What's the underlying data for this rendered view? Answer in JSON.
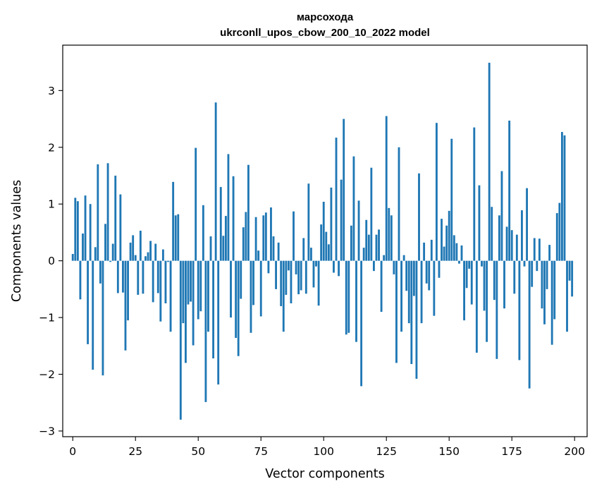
{
  "chart_data": {
    "type": "bar",
    "title": "марсохода",
    "subtitle": "ukrconll_upos_cbow_200_10_2022 model",
    "xlabel": "Vector components",
    "ylabel": "Components values",
    "xlim": [
      -4,
      205
    ],
    "ylim": [
      -3.1,
      3.8
    ],
    "xticks": [
      0,
      25,
      50,
      75,
      100,
      125,
      150,
      175,
      200
    ],
    "xtick_labels": [
      "0",
      "25",
      "50",
      "75",
      "100",
      "125",
      "150",
      "175",
      "200"
    ],
    "yticks": [
      -3,
      -2,
      -1,
      0,
      1,
      2,
      3
    ],
    "ytick_labels": [
      "−3",
      "−2",
      "−1",
      "0",
      "1",
      "2",
      "3"
    ],
    "grid": false,
    "legend": "none",
    "bar_color": "#1f77b4",
    "series": [
      {
        "x": [
          0,
          1,
          2,
          3,
          4,
          5,
          6,
          7,
          8,
          9,
          10,
          11,
          12,
          13,
          14,
          15,
          16,
          17,
          18,
          19,
          20,
          21,
          22,
          23,
          24,
          25,
          26,
          27,
          28,
          29,
          30,
          31,
          32,
          33,
          34,
          35,
          36,
          37,
          38,
          39,
          40,
          41,
          42,
          43,
          44,
          45,
          46,
          47,
          48,
          49,
          50,
          51,
          52,
          53,
          54,
          55,
          56,
          57,
          58,
          59,
          60,
          61,
          62,
          63,
          64,
          65,
          66,
          67,
          68,
          69,
          70,
          71,
          72,
          73,
          74,
          75,
          76,
          77,
          78,
          79,
          80,
          81,
          82,
          83,
          84,
          85,
          86,
          87,
          88,
          89,
          90,
          91,
          92,
          93,
          94,
          95,
          96,
          97,
          98,
          99,
          100,
          101,
          102,
          103,
          104,
          105,
          106,
          107,
          108,
          109,
          110,
          111,
          112,
          113,
          114,
          115,
          116,
          117,
          118,
          119,
          120,
          121,
          122,
          123,
          124,
          125,
          126,
          127,
          128,
          129,
          130,
          131,
          132,
          133,
          134,
          135,
          136,
          137,
          138,
          139,
          140,
          141,
          142,
          143,
          144,
          145,
          146,
          147,
          148,
          149,
          150,
          151,
          152,
          153,
          154,
          155,
          156,
          157,
          158,
          159,
          160,
          161,
          162,
          163,
          164,
          165,
          166,
          167,
          168,
          169,
          170,
          171,
          172,
          173,
          174,
          175,
          176,
          177,
          178,
          179,
          180,
          181,
          182,
          183,
          184,
          185,
          186,
          187,
          188,
          189,
          190,
          191,
          192,
          193,
          194,
          195,
          196,
          197,
          198,
          199
        ],
        "values": [
          0.12,
          1.11,
          1.05,
          -0.68,
          0.48,
          1.15,
          -1.47,
          1.0,
          -1.92,
          0.24,
          1.7,
          -0.4,
          -2.02,
          0.65,
          1.72,
          -0.02,
          0.3,
          1.5,
          -0.57,
          1.17,
          -0.56,
          -1.58,
          -1.05,
          0.32,
          0.45,
          0.1,
          -0.6,
          0.53,
          -0.58,
          0.08,
          0.15,
          0.35,
          -0.73,
          0.3,
          -0.57,
          -1.07,
          0.2,
          -0.75,
          -0.02,
          -1.25,
          1.39,
          0.8,
          0.82,
          -2.8,
          -1.1,
          -1.8,
          -0.77,
          -0.72,
          -1.49,
          1.99,
          -1.03,
          -0.89,
          0.98,
          -2.49,
          -1.25,
          0.43,
          -1.72,
          2.79,
          -2.18,
          1.3,
          0.44,
          0.79,
          1.88,
          -1.0,
          1.49,
          -1.36,
          -1.68,
          -0.67,
          0.59,
          0.86,
          1.69,
          -1.27,
          -0.78,
          0.77,
          0.18,
          -0.98,
          0.8,
          0.85,
          -0.22,
          0.94,
          0.43,
          -0.5,
          0.32,
          -0.8,
          -1.25,
          -0.6,
          -0.17,
          -0.75,
          0.87,
          -0.24,
          -0.59,
          -0.52,
          0.4,
          -0.58,
          1.36,
          0.23,
          -0.47,
          -0.1,
          -0.79,
          0.64,
          1.04,
          0.51,
          0.29,
          1.29,
          -0.21,
          2.17,
          -0.27,
          1.43,
          2.5,
          -1.3,
          -1.27,
          0.62,
          1.84,
          -1.43,
          1.06,
          -2.21,
          0.23,
          0.72,
          0.46,
          1.64,
          -0.18,
          0.46,
          0.55,
          -0.9,
          0.1,
          2.55,
          0.93,
          0.8,
          -0.24,
          -1.8,
          2.0,
          -1.25,
          0.1,
          -0.53,
          -1.1,
          -1.82,
          -0.62,
          -2.08,
          1.54,
          -1.1,
          0.32,
          -0.4,
          -0.52,
          0.37,
          -0.97,
          2.43,
          -0.3,
          0.74,
          0.25,
          0.62,
          0.88,
          2.15,
          0.45,
          0.31,
          -0.05,
          0.27,
          -1.05,
          -0.48,
          -0.14,
          -0.77,
          2.35,
          -1.62,
          1.33,
          -0.1,
          -0.88,
          -1.43,
          3.49,
          0.95,
          -0.69,
          -1.73,
          0.8,
          1.58,
          -0.84,
          0.6,
          2.47,
          0.54,
          -0.58,
          0.46,
          -1.75,
          0.89,
          -0.1,
          1.28,
          -2.25,
          -0.46,
          0.4,
          -0.18,
          0.39,
          -0.84,
          -1.12,
          -0.5,
          0.28,
          -1.48,
          -1.03,
          0.84,
          1.02,
          2.27,
          2.21,
          -1.25,
          -0.35,
          -0.63
        ]
      }
    ]
  }
}
